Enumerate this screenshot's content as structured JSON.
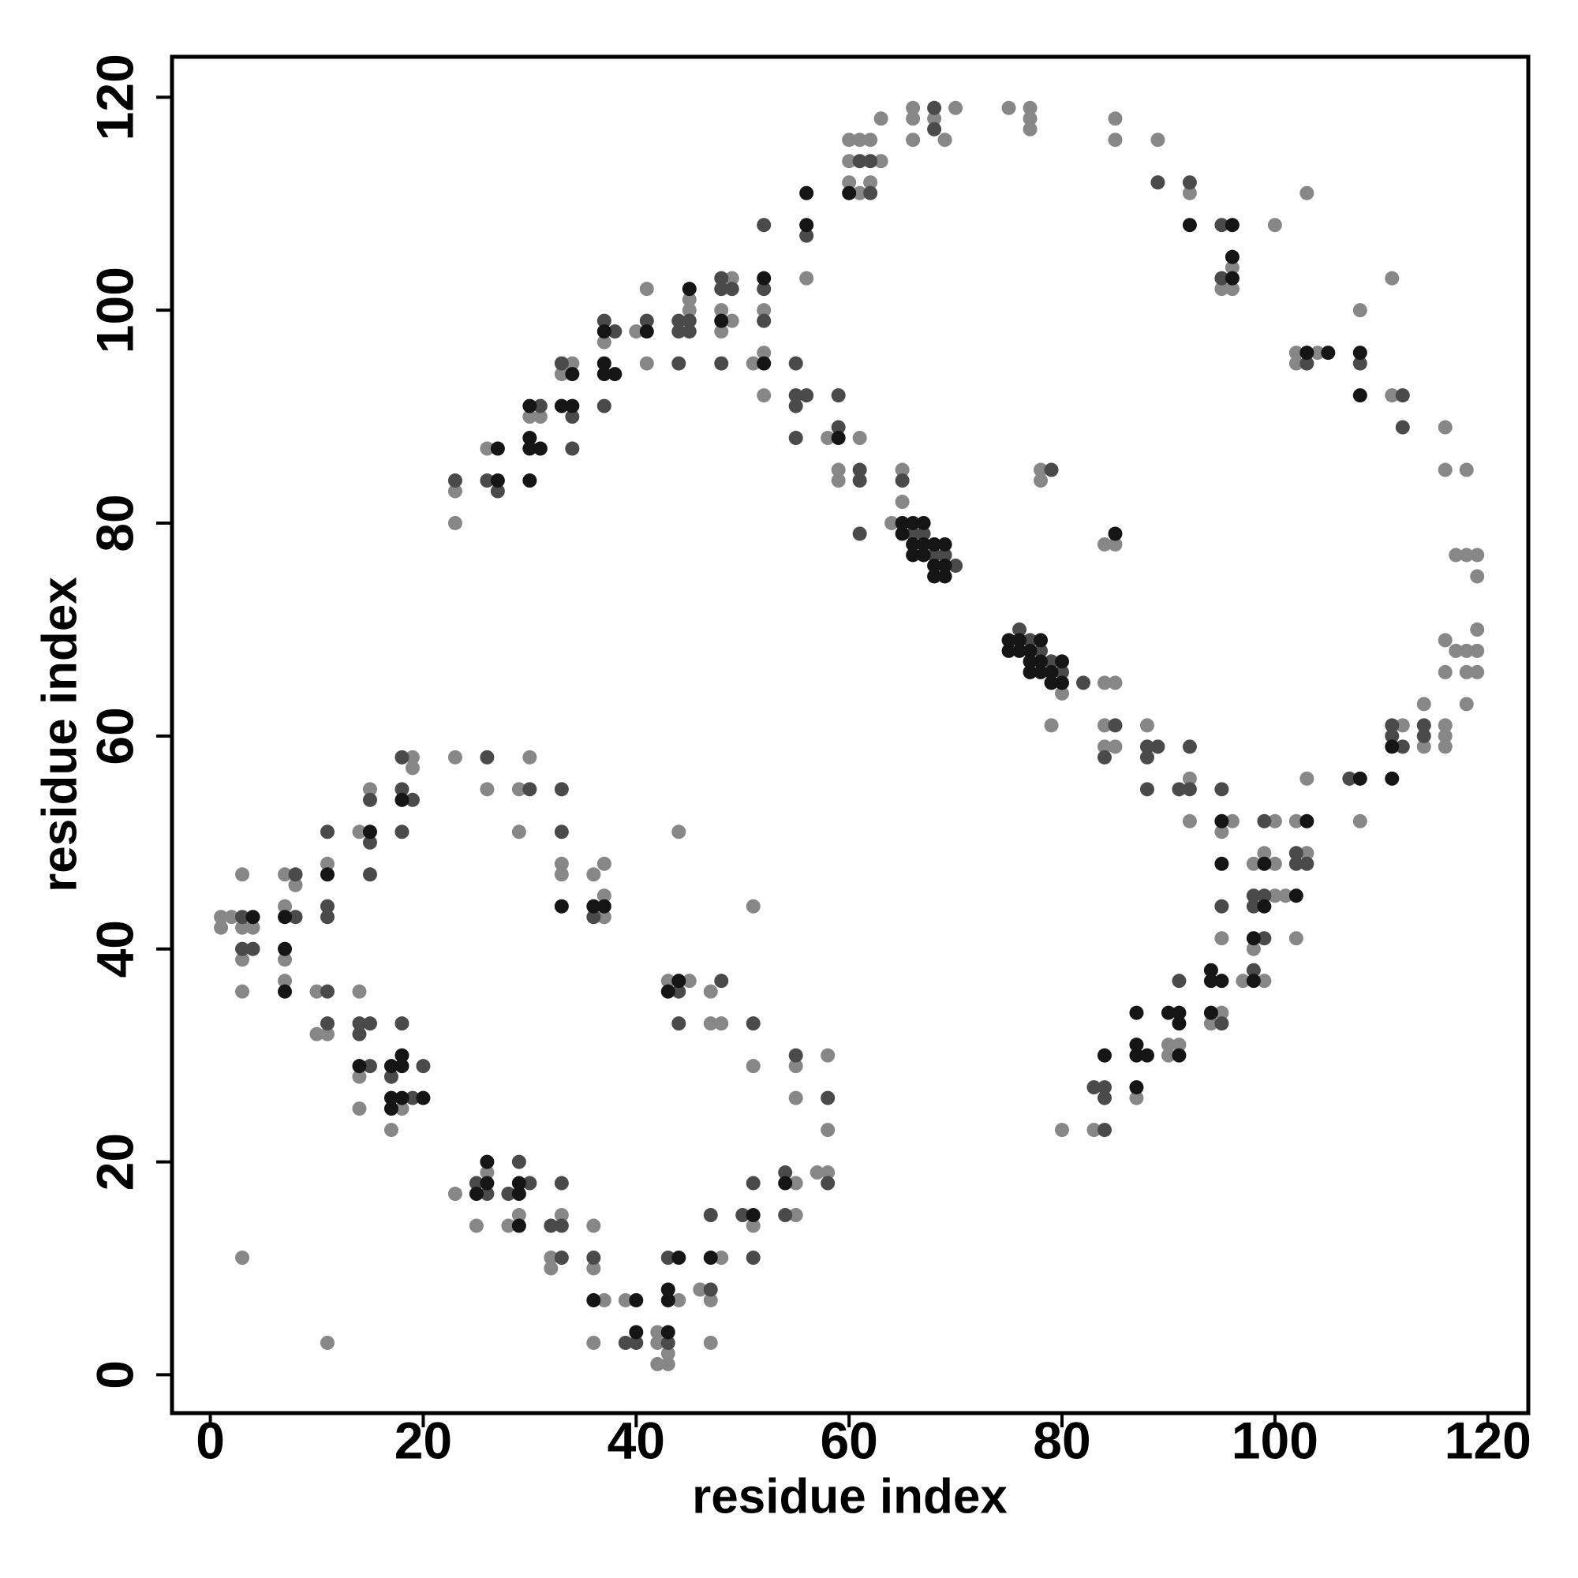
{
  "chart_data": {
    "type": "scatter",
    "xlabel": "residue index",
    "ylabel": "residue index",
    "xlim": [
      -3.6,
      123.8
    ],
    "ylim": [
      -3.6,
      123.8
    ],
    "xticks": [
      0,
      20,
      40,
      60,
      80,
      100,
      120
    ],
    "yticks": [
      0,
      20,
      40,
      60,
      80,
      100,
      120
    ],
    "series": [
      {
        "color": "#878787",
        "x": [
          23,
          23,
          26,
          30,
          31,
          33,
          34,
          37,
          40,
          41,
          41,
          45,
          45,
          48,
          48,
          49,
          49,
          51,
          52,
          52,
          52,
          56,
          58,
          59,
          59,
          60,
          60,
          60,
          61,
          61,
          61,
          62,
          62,
          63,
          63,
          64,
          65,
          65,
          66,
          66,
          66,
          68,
          69,
          70,
          75,
          77,
          77,
          77,
          78,
          78,
          79,
          80,
          84,
          84,
          84,
          84,
          85,
          85,
          85,
          85,
          85,
          88,
          89,
          92,
          92,
          92,
          95,
          95,
          95,
          96,
          96,
          96,
          100,
          103,
          102,
          102,
          104,
          108,
          111,
          111,
          116,
          116,
          118,
          117,
          118,
          119,
          119,
          119,
          119,
          119,
          116,
          117,
          118,
          118,
          116,
          118,
          114,
          116,
          116,
          116,
          114,
          112,
          108,
          103,
          102,
          103,
          100,
          99,
          100,
          98,
          100,
          101,
          102,
          98,
          97,
          99,
          95,
          94,
          91,
          90,
          90,
          87,
          83,
          80,
          1,
          1,
          2,
          3,
          3,
          3,
          3,
          4,
          3,
          7,
          7,
          7,
          7,
          8,
          10,
          10,
          11,
          11,
          11,
          14,
          14,
          14,
          14,
          15,
          17,
          18,
          19,
          19,
          23,
          23,
          25,
          26,
          26,
          28,
          29,
          29,
          29,
          30,
          32,
          32,
          33,
          33,
          33,
          36,
          36,
          36,
          36,
          37,
          37,
          37,
          37,
          39,
          42,
          42,
          42,
          43,
          43,
          43,
          44,
          44,
          45,
          46,
          47,
          47,
          47,
          47,
          48,
          48,
          51,
          51,
          51,
          55,
          55,
          55,
          55,
          57,
          58,
          58,
          58
        ],
        "y": [
          83,
          80,
          87,
          90,
          90,
          94,
          95,
          97,
          98,
          102,
          95,
          101,
          100,
          100,
          98,
          103,
          99,
          95,
          100,
          96,
          92,
          103,
          88,
          85,
          84,
          116,
          114,
          112,
          116,
          111,
          88,
          116,
          112,
          118,
          114,
          80,
          85,
          82,
          119,
          118,
          116,
          118,
          116,
          119,
          119,
          119,
          118,
          117,
          85,
          84,
          61,
          64,
          78,
          65,
          61,
          59,
          78,
          65,
          59,
          118,
          116,
          61,
          116,
          111,
          56,
          52,
          102,
          51,
          41,
          104,
          102,
          52,
          108,
          111,
          96,
          95,
          96,
          100,
          103,
          92,
          89,
          85,
          85,
          77,
          77,
          77,
          75,
          70,
          68,
          66,
          69,
          68,
          68,
          66,
          66,
          63,
          63,
          61,
          60,
          59,
          59,
          61,
          52,
          56,
          52,
          49,
          52,
          49,
          48,
          48,
          45,
          45,
          41,
          40,
          37,
          37,
          34,
          33,
          31,
          31,
          30,
          26,
          23,
          23,
          43,
          42,
          43,
          42,
          39,
          36,
          47,
          42,
          11,
          47,
          44,
          39,
          37,
          46,
          36,
          32,
          48,
          32,
          3,
          51,
          36,
          28,
          25,
          55,
          23,
          25,
          58,
          57,
          58,
          17,
          14,
          55,
          19,
          14,
          55,
          51,
          15,
          58,
          11,
          10,
          48,
          47,
          15,
          47,
          14,
          10,
          3,
          48,
          45,
          43,
          7,
          7,
          4,
          3,
          1,
          2,
          1,
          37,
          7,
          51,
          37,
          8,
          36,
          33,
          7,
          3,
          33,
          11,
          44,
          29,
          14,
          29,
          26,
          18,
          15,
          19,
          30,
          23,
          19
        ]
      },
      {
        "color": "#4a4a4a",
        "x": [
          23,
          26,
          27,
          31,
          33,
          34,
          34,
          37,
          37,
          38,
          41,
          44,
          44,
          44,
          45,
          45,
          48,
          48,
          48,
          49,
          52,
          52,
          52,
          55,
          55,
          55,
          55,
          56,
          56,
          59,
          59,
          61,
          61,
          61,
          61,
          62,
          62,
          65,
          66,
          67,
          68,
          68,
          68,
          69,
          70,
          76,
          77,
          78,
          79,
          79,
          80,
          82,
          84,
          85,
          88,
          88,
          88,
          89,
          89,
          91,
          92,
          92,
          92,
          95,
          95,
          95,
          95,
          103,
          108,
          112,
          112,
          114,
          114,
          111,
          111,
          112,
          107,
          103,
          102,
          102,
          99,
          98,
          98,
          99,
          99,
          98,
          95,
          91,
          84,
          84,
          84,
          83,
          3,
          3,
          4,
          8,
          8,
          11,
          11,
          11,
          11,
          11,
          14,
          14,
          15,
          15,
          15,
          15,
          15,
          17,
          18,
          18,
          18,
          18,
          19,
          19,
          20,
          25,
          26,
          26,
          28,
          29,
          30,
          30,
          32,
          33,
          33,
          33,
          33,
          33,
          36,
          36,
          39,
          40,
          43,
          43,
          44,
          44,
          47,
          47,
          48,
          50,
          51,
          51,
          51,
          54,
          54,
          55,
          58,
          58
        ],
        "y": [
          84,
          84,
          83,
          91,
          95,
          90,
          87,
          99,
          91,
          98,
          99,
          99,
          98,
          95,
          99,
          98,
          103,
          102,
          95,
          102,
          102,
          99,
          108,
          95,
          92,
          91,
          88,
          107,
          92,
          92,
          89,
          114,
          85,
          84,
          79,
          114,
          111,
          84,
          79,
          79,
          119,
          117,
          77,
          77,
          76,
          70,
          69,
          68,
          67,
          85,
          66,
          65,
          58,
          61,
          59,
          58,
          55,
          112,
          59,
          55,
          112,
          59,
          55,
          108,
          103,
          55,
          44,
          95,
          95,
          92,
          89,
          61,
          60,
          61,
          60,
          59,
          56,
          48,
          49,
          48,
          52,
          45,
          44,
          45,
          41,
          38,
          33,
          37,
          27,
          26,
          23,
          27,
          43,
          40,
          40,
          47,
          43,
          51,
          44,
          43,
          36,
          33,
          33,
          32,
          54,
          50,
          47,
          33,
          29,
          28,
          58,
          55,
          51,
          33,
          54,
          26,
          29,
          18,
          58,
          17,
          17,
          20,
          55,
          18,
          14,
          55,
          51,
          18,
          14,
          11,
          43,
          11,
          3,
          3,
          11,
          3,
          36,
          33,
          15,
          8,
          37,
          15,
          33,
          18,
          11,
          19,
          15,
          30,
          26,
          18
        ]
      },
      {
        "color": "#151515",
        "x": [
          27,
          27,
          30,
          30,
          30,
          30,
          31,
          33,
          34,
          34,
          37,
          37,
          37,
          38,
          41,
          45,
          48,
          52,
          52,
          56,
          56,
          59,
          60,
          65,
          65,
          66,
          66,
          66,
          67,
          67,
          67,
          68,
          68,
          68,
          69,
          69,
          69,
          75,
          75,
          76,
          76,
          77,
          77,
          77,
          78,
          78,
          78,
          79,
          79,
          80,
          80,
          85,
          92,
          95,
          95,
          96,
          96,
          96,
          103,
          105,
          108,
          108,
          111,
          111,
          108,
          103,
          99,
          99,
          102,
          98,
          98,
          94,
          94,
          95,
          94,
          91,
          91,
          91,
          90,
          87,
          87,
          87,
          87,
          88,
          84,
          4,
          7,
          7,
          7,
          11,
          14,
          15,
          17,
          17,
          17,
          18,
          18,
          18,
          18,
          20,
          25,
          26,
          26,
          29,
          29,
          29,
          33,
          36,
          36,
          37,
          40,
          40,
          43,
          43,
          43,
          43,
          44,
          44,
          47,
          51,
          54
        ],
        "y": [
          87,
          84,
          91,
          88,
          87,
          84,
          87,
          91,
          94,
          91,
          98,
          95,
          94,
          94,
          98,
          102,
          99,
          103,
          95,
          111,
          108,
          88,
          111,
          80,
          79,
          80,
          78,
          77,
          80,
          78,
          77,
          78,
          76,
          75,
          78,
          76,
          75,
          69,
          68,
          69,
          68,
          68,
          67,
          66,
          69,
          67,
          66,
          66,
          65,
          67,
          65,
          79,
          108,
          52,
          48,
          108,
          105,
          103,
          96,
          96,
          96,
          92,
          59,
          56,
          56,
          52,
          48,
          44,
          45,
          41,
          37,
          38,
          37,
          37,
          34,
          34,
          33,
          30,
          34,
          34,
          31,
          30,
          27,
          30,
          30,
          43,
          43,
          40,
          36,
          47,
          29,
          51,
          29,
          26,
          25,
          54,
          30,
          29,
          26,
          26,
          17,
          20,
          18,
          18,
          17,
          14,
          44,
          44,
          7,
          44,
          4,
          7,
          8,
          7,
          4,
          36,
          37,
          11,
          11,
          15,
          18
        ]
      }
    ]
  }
}
